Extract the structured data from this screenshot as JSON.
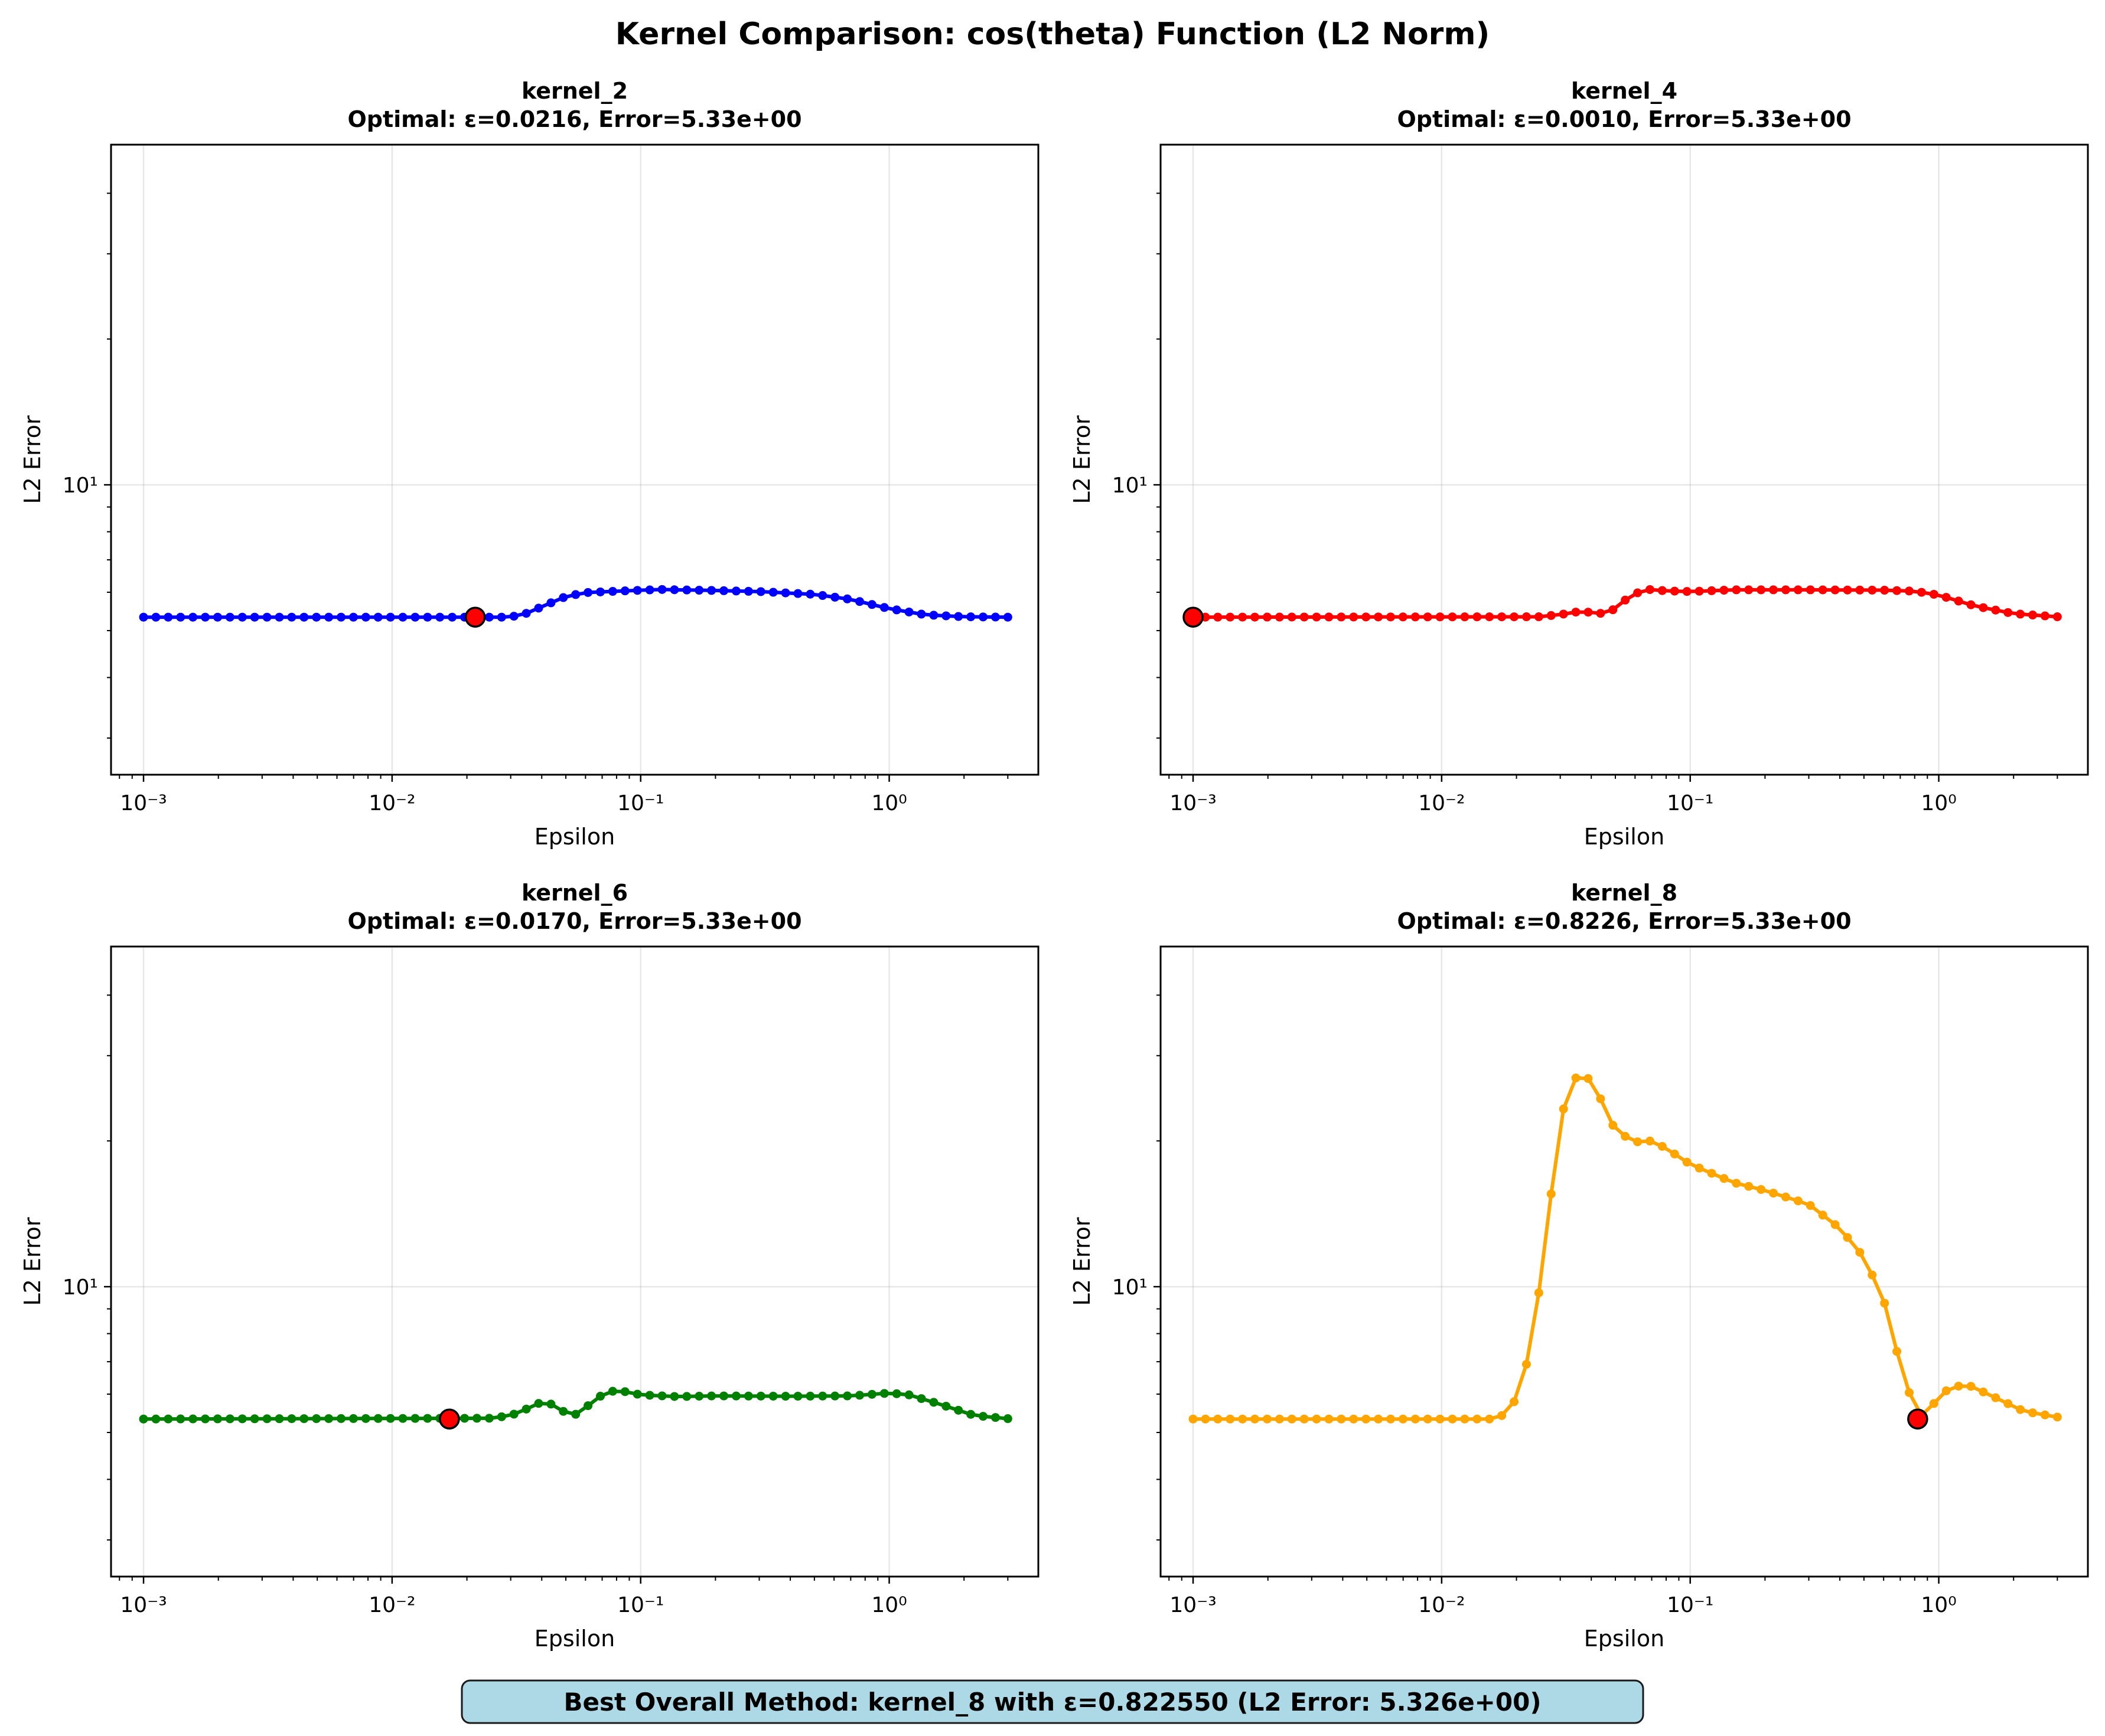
{
  "figure": {
    "title": "Kernel Comparison: cos(theta) Function (L2 Norm)",
    "summary": "Best Overall Method: kernel_8 with ε=0.822550 (L2 Error: 5.326e+00)",
    "summary_bg": "#add8e6"
  },
  "chart_data": [
    {
      "type": "line",
      "name": "kernel_2",
      "title": "kernel_2",
      "subtitle": "Optimal: ε=0.0216, Error=5.33e+00",
      "xlabel": "Epsilon",
      "ylabel": "L2 Error",
      "xscale": "log",
      "yscale": "log",
      "xlim": [
        0.00074,
        3.98
      ],
      "ylim": [
        2.52,
        50.4
      ],
      "x_ticks": [
        0.001,
        0.01,
        0.1,
        1
      ],
      "x_tick_labels": [
        "10⁻³",
        "10⁻²",
        "10⁻¹",
        "10⁰"
      ],
      "y_ticks": [
        10
      ],
      "y_tick_labels": [
        "10¹"
      ],
      "grid": true,
      "color": "#0000ff",
      "x_range": [
        0.001,
        3.0
      ],
      "n_points": 71,
      "curve_knots": [
        [
          0.001,
          5.33
        ],
        [
          0.028,
          5.33
        ],
        [
          0.033,
          5.37
        ],
        [
          0.04,
          5.6
        ],
        [
          0.05,
          5.88
        ],
        [
          0.06,
          5.99
        ],
        [
          0.08,
          6.03
        ],
        [
          0.12,
          6.08
        ],
        [
          0.2,
          6.05
        ],
        [
          0.3,
          6.02
        ],
        [
          0.5,
          5.94
        ],
        [
          0.7,
          5.8
        ],
        [
          1.0,
          5.55
        ],
        [
          1.4,
          5.39
        ],
        [
          2.0,
          5.34
        ],
        [
          3.0,
          5.33
        ]
      ],
      "optimum": {
        "x": 0.0216,
        "y": 5.33
      }
    },
    {
      "type": "line",
      "name": "kernel_4",
      "title": "kernel_4",
      "subtitle": "Optimal: ε=0.0010, Error=5.33e+00",
      "xlabel": "Epsilon",
      "ylabel": "L2 Error",
      "xscale": "log",
      "yscale": "log",
      "xlim": [
        0.00074,
        3.98
      ],
      "ylim": [
        2.52,
        50.4
      ],
      "x_ticks": [
        0.001,
        0.01,
        0.1,
        1
      ],
      "x_tick_labels": [
        "10⁻³",
        "10⁻²",
        "10⁻¹",
        "10⁰"
      ],
      "y_ticks": [
        10
      ],
      "y_tick_labels": [
        "10¹"
      ],
      "grid": true,
      "color": "#ff0000",
      "x_range": [
        0.001,
        3.0
      ],
      "n_points": 71,
      "curve_knots": [
        [
          0.001,
          5.33
        ],
        [
          0.025,
          5.34
        ],
        [
          0.032,
          5.42
        ],
        [
          0.036,
          5.48
        ],
        [
          0.04,
          5.45
        ],
        [
          0.045,
          5.42
        ],
        [
          0.05,
          5.55
        ],
        [
          0.058,
          5.93
        ],
        [
          0.068,
          6.08
        ],
        [
          0.08,
          6.04
        ],
        [
          0.1,
          6.02
        ],
        [
          0.15,
          6.07
        ],
        [
          0.3,
          6.07
        ],
        [
          0.6,
          6.06
        ],
        [
          0.8,
          6.03
        ],
        [
          1.0,
          5.92
        ],
        [
          1.4,
          5.62
        ],
        [
          2.0,
          5.42
        ],
        [
          3.0,
          5.34
        ]
      ],
      "optimum": {
        "x": 0.001,
        "y": 5.33
      }
    },
    {
      "type": "line",
      "name": "kernel_6",
      "title": "kernel_6",
      "subtitle": "Optimal: ε=0.0170, Error=5.33e+00",
      "xlabel": "Epsilon",
      "ylabel": "L2 Error",
      "xscale": "log",
      "yscale": "log",
      "xlim": [
        0.00074,
        3.98
      ],
      "ylim": [
        2.52,
        50.4
      ],
      "x_ticks": [
        0.001,
        0.01,
        0.1,
        1
      ],
      "x_tick_labels": [
        "10⁻³",
        "10⁻²",
        "10⁻¹",
        "10⁰"
      ],
      "y_ticks": [
        10
      ],
      "y_tick_labels": [
        "10¹"
      ],
      "grid": true,
      "color": "#008000",
      "x_range": [
        0.001,
        3.0
      ],
      "n_points": 71,
      "curve_knots": [
        [
          0.001,
          5.33
        ],
        [
          0.025,
          5.35
        ],
        [
          0.03,
          5.42
        ],
        [
          0.035,
          5.6
        ],
        [
          0.04,
          5.78
        ],
        [
          0.045,
          5.7
        ],
        [
          0.05,
          5.48
        ],
        [
          0.055,
          5.45
        ],
        [
          0.062,
          5.7
        ],
        [
          0.07,
          5.98
        ],
        [
          0.08,
          6.12
        ],
        [
          0.1,
          5.98
        ],
        [
          0.14,
          5.93
        ],
        [
          0.2,
          5.95
        ],
        [
          0.4,
          5.94
        ],
        [
          0.7,
          5.95
        ],
        [
          1.0,
          6.03
        ],
        [
          1.2,
          5.98
        ],
        [
          1.6,
          5.72
        ],
        [
          2.2,
          5.42
        ],
        [
          3.0,
          5.34
        ]
      ],
      "optimum": {
        "x": 0.017,
        "y": 5.33
      }
    },
    {
      "type": "line",
      "name": "kernel_8",
      "title": "kernel_8",
      "subtitle": "Optimal: ε=0.8226, Error=5.33e+00",
      "xlabel": "Epsilon",
      "ylabel": "L2 Error",
      "xscale": "log",
      "yscale": "log",
      "xlim": [
        0.00074,
        3.98
      ],
      "ylim": [
        2.52,
        50.4
      ],
      "x_ticks": [
        0.001,
        0.01,
        0.1,
        1
      ],
      "x_tick_labels": [
        "10⁻³",
        "10⁻²",
        "10⁻¹",
        "10⁰"
      ],
      "y_ticks": [
        10
      ],
      "y_tick_labels": [
        "10¹"
      ],
      "grid": true,
      "color": "#ffa500",
      "x_range": [
        0.001,
        3.0
      ],
      "n_points": 71,
      "curve_knots": [
        [
          0.001,
          5.33
        ],
        [
          0.016,
          5.33
        ],
        [
          0.018,
          5.45
        ],
        [
          0.02,
          5.88
        ],
        [
          0.022,
          6.95
        ],
        [
          0.025,
          10.2
        ],
        [
          0.028,
          16.6
        ],
        [
          0.031,
          23.5
        ],
        [
          0.035,
          27.3
        ],
        [
          0.04,
          26.8
        ],
        [
          0.045,
          23.6
        ],
        [
          0.05,
          21.0
        ],
        [
          0.06,
          19.9
        ],
        [
          0.07,
          20.0
        ],
        [
          0.08,
          19.3
        ],
        [
          0.1,
          17.9
        ],
        [
          0.15,
          16.4
        ],
        [
          0.2,
          15.8
        ],
        [
          0.3,
          14.8
        ],
        [
          0.4,
          13.2
        ],
        [
          0.5,
          11.5
        ],
        [
          0.6,
          9.4
        ],
        [
          0.7,
          6.9
        ],
        [
          0.8226,
          5.33
        ],
        [
          0.95,
          5.72
        ],
        [
          1.1,
          6.18
        ],
        [
          1.3,
          6.28
        ],
        [
          1.6,
          5.98
        ],
        [
          2.2,
          5.53
        ],
        [
          3.0,
          5.38
        ]
      ],
      "optimum": {
        "x": 0.8226,
        "y": 5.33
      }
    }
  ]
}
